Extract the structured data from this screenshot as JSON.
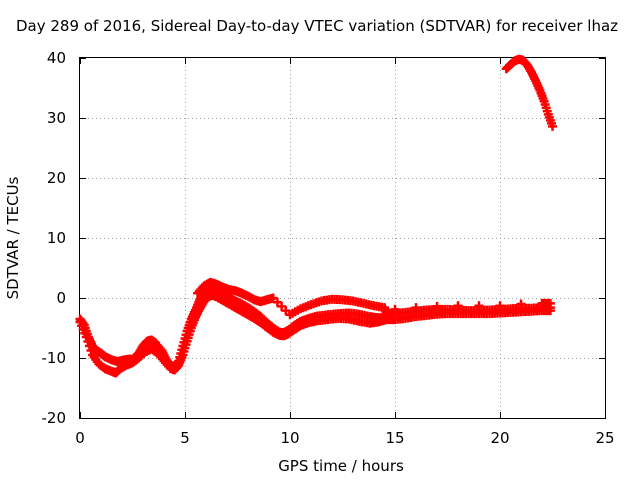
{
  "chart_data": {
    "type": "scatter",
    "title": "Day 289 of 2016, Sidereal Day-to-day VTEC variation (SDTVAR) for receiver lhaz",
    "xlabel": "GPS time / hours",
    "ylabel": "SDTVAR / TECUs",
    "xlim": [
      0,
      25
    ],
    "ylim": [
      -20,
      40
    ],
    "xticks": [
      0,
      5,
      10,
      15,
      20,
      25
    ],
    "yticks": [
      -20,
      -10,
      0,
      10,
      20,
      30,
      40
    ],
    "grid": true,
    "marker_color": "#ff0000",
    "series": [
      {
        "values": [
          [
            0.0,
            -3.5
          ],
          [
            0.2,
            -4.5
          ],
          [
            0.4,
            -6.5
          ],
          [
            0.6,
            -8.0
          ],
          [
            0.8,
            -8.8
          ],
          [
            1.0,
            -9.2
          ],
          [
            1.2,
            -9.8
          ],
          [
            1.5,
            -10.3
          ],
          [
            1.8,
            -10.6
          ],
          [
            2.0,
            -10.4
          ],
          [
            2.3,
            -10.2
          ],
          [
            2.5,
            -10.2
          ],
          [
            2.8,
            -9.2
          ],
          [
            3.0,
            -8.0
          ],
          [
            3.2,
            -7.2
          ],
          [
            3.4,
            -7.0
          ],
          [
            3.6,
            -7.5
          ],
          [
            3.9,
            -8.8
          ],
          [
            4.1,
            -10.2
          ],
          [
            4.3,
            -11.2
          ],
          [
            4.5,
            -11.5
          ],
          [
            4.7,
            -10.5
          ],
          [
            4.9,
            -8.0
          ],
          [
            5.1,
            -5.5
          ],
          [
            5.3,
            -3.5
          ],
          [
            5.5,
            -2.0
          ],
          [
            5.7,
            -0.3
          ],
          [
            5.9,
            1.0
          ],
          [
            6.1,
            1.6
          ],
          [
            6.3,
            1.5
          ],
          [
            6.5,
            1.2
          ],
          [
            6.8,
            0.6
          ],
          [
            7.1,
            0.0
          ],
          [
            7.4,
            -0.5
          ],
          [
            7.7,
            -1.0
          ],
          [
            8.0,
            -1.6
          ],
          [
            8.3,
            -2.3
          ],
          [
            8.6,
            -3.1
          ],
          [
            8.9,
            -4.1
          ],
          [
            9.2,
            -5.0
          ],
          [
            9.5,
            -5.7
          ],
          [
            9.7,
            -5.8
          ],
          [
            9.9,
            -5.4
          ],
          [
            10.2,
            -4.6
          ],
          [
            10.5,
            -3.9
          ],
          [
            10.9,
            -3.4
          ],
          [
            11.3,
            -3.0
          ],
          [
            11.8,
            -2.8
          ],
          [
            12.3,
            -2.6
          ],
          [
            12.8,
            -2.5
          ],
          [
            13.3,
            -2.7
          ],
          [
            13.8,
            -3.1
          ],
          [
            14.2,
            -3.3
          ],
          [
            14.6,
            -3.2
          ]
        ]
      },
      {
        "values": [
          [
            0.0,
            -4.0
          ],
          [
            0.3,
            -6.5
          ],
          [
            0.6,
            -9.5
          ],
          [
            0.9,
            -11.0
          ],
          [
            1.2,
            -11.8
          ],
          [
            1.5,
            -12.2
          ],
          [
            1.7,
            -12.5
          ],
          [
            1.9,
            -11.8
          ],
          [
            2.2,
            -11.2
          ],
          [
            2.5,
            -10.8
          ],
          [
            2.8,
            -10.0
          ],
          [
            3.1,
            -9.0
          ],
          [
            3.4,
            -8.5
          ],
          [
            3.7,
            -9.2
          ],
          [
            4.0,
            -10.5
          ],
          [
            4.3,
            -11.7
          ],
          [
            4.5,
            -12.0
          ],
          [
            4.7,
            -11.2
          ],
          [
            4.9,
            -9.5
          ],
          [
            5.1,
            -7.2
          ],
          [
            5.3,
            -5.0
          ],
          [
            5.5,
            -3.2
          ],
          [
            5.7,
            -1.8
          ],
          [
            5.9,
            -0.6
          ],
          [
            6.1,
            0.2
          ],
          [
            6.3,
            0.5
          ],
          [
            6.5,
            0.2
          ],
          [
            6.8,
            -0.4
          ],
          [
            7.1,
            -1.0
          ],
          [
            7.4,
            -1.6
          ],
          [
            7.7,
            -2.2
          ],
          [
            8.0,
            -2.8
          ],
          [
            8.3,
            -3.4
          ],
          [
            8.6,
            -4.1
          ],
          [
            8.9,
            -4.9
          ],
          [
            9.2,
            -5.7
          ],
          [
            9.5,
            -6.2
          ],
          [
            9.7,
            -6.3
          ],
          [
            9.9,
            -6.0
          ],
          [
            10.2,
            -5.3
          ],
          [
            10.5,
            -4.6
          ],
          [
            10.9,
            -4.1
          ],
          [
            11.3,
            -3.8
          ],
          [
            11.8,
            -3.6
          ],
          [
            12.3,
            -3.4
          ],
          [
            12.8,
            -3.5
          ],
          [
            13.3,
            -3.9
          ],
          [
            13.8,
            -4.2
          ],
          [
            14.2,
            -4.0
          ],
          [
            14.6,
            -3.6
          ]
        ]
      },
      {
        "values": [
          [
            5.6,
            0.8
          ],
          [
            5.9,
            2.0
          ],
          [
            6.2,
            2.6
          ],
          [
            6.5,
            2.3
          ],
          [
            6.8,
            1.8
          ],
          [
            7.1,
            1.4
          ],
          [
            7.4,
            1.2
          ],
          [
            7.7,
            0.8
          ],
          [
            8.0,
            0.3
          ],
          [
            8.3,
            -0.3
          ],
          [
            8.6,
            -0.6
          ],
          [
            8.9,
            -0.3
          ],
          [
            9.2,
            0.0
          ],
          [
            10.0,
            -2.8
          ],
          [
            10.5,
            -1.8
          ],
          [
            11.0,
            -1.1
          ],
          [
            11.5,
            -0.5
          ],
          [
            12.0,
            -0.2
          ],
          [
            12.5,
            -0.3
          ],
          [
            13.0,
            -0.5
          ],
          [
            13.5,
            -0.9
          ],
          [
            14.0,
            -1.3
          ],
          [
            14.5,
            -1.6
          ],
          [
            14.6,
            -2.6
          ],
          [
            15.0,
            -2.6
          ],
          [
            15.5,
            -2.4
          ],
          [
            16.0,
            -2.2
          ],
          [
            16.5,
            -2.0
          ],
          [
            17.0,
            -1.9
          ],
          [
            17.5,
            -1.9
          ],
          [
            18.0,
            -2.0
          ],
          [
            18.5,
            -2.1
          ],
          [
            19.0,
            -2.1
          ],
          [
            19.5,
            -2.0
          ],
          [
            20.0,
            -1.9
          ],
          [
            20.5,
            -1.8
          ],
          [
            21.0,
            -1.7
          ],
          [
            21.5,
            -1.7
          ],
          [
            22.0,
            -1.6
          ],
          [
            22.4,
            -1.6
          ],
          [
            14.6,
            -3.6
          ],
          [
            15.0,
            -3.6
          ],
          [
            15.5,
            -3.4
          ],
          [
            16.0,
            -3.1
          ],
          [
            16.5,
            -2.9
          ],
          [
            17.0,
            -2.7
          ],
          [
            17.5,
            -2.6
          ],
          [
            18.0,
            -2.6
          ],
          [
            18.5,
            -2.6
          ],
          [
            19.0,
            -2.6
          ],
          [
            19.5,
            -2.6
          ],
          [
            20.0,
            -2.5
          ],
          [
            20.5,
            -2.4
          ],
          [
            21.0,
            -2.3
          ],
          [
            21.5,
            -2.2
          ],
          [
            22.0,
            -2.1
          ],
          [
            22.4,
            -2.1
          ],
          [
            15.0,
            -1.9
          ],
          [
            16.0,
            -1.6
          ],
          [
            17.0,
            -1.4
          ],
          [
            18.0,
            -1.3
          ],
          [
            19.0,
            -1.3
          ],
          [
            20.0,
            -1.3
          ],
          [
            21.0,
            -1.0
          ],
          [
            22.0,
            -0.9
          ],
          [
            22.4,
            -0.9
          ]
        ]
      },
      {
        "values": [
          [
            20.3,
            38.2
          ],
          [
            20.5,
            38.9
          ],
          [
            20.7,
            39.5
          ],
          [
            20.9,
            39.8
          ],
          [
            21.1,
            39.6
          ],
          [
            21.3,
            38.8
          ],
          [
            21.5,
            37.6
          ],
          [
            21.7,
            36.2
          ],
          [
            21.9,
            34.6
          ],
          [
            22.1,
            32.8
          ],
          [
            22.3,
            30.6
          ],
          [
            22.5,
            28.6
          ]
        ]
      }
    ]
  }
}
